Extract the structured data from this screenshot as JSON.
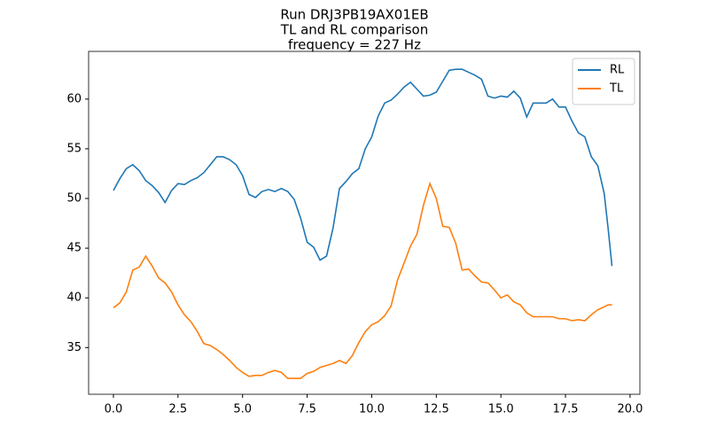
{
  "chart_data": {
    "type": "line",
    "title": [
      "Run DRJ3PB19AX01EB",
      "TL and RL comparison",
      "frequency = 227 Hz"
    ],
    "x": [
      0,
      0.25,
      0.5,
      0.75,
      1,
      1.25,
      1.5,
      1.75,
      2,
      2.25,
      2.5,
      2.75,
      3,
      3.25,
      3.5,
      3.75,
      4,
      4.25,
      4.5,
      4.75,
      5,
      5.25,
      5.5,
      5.75,
      6,
      6.25,
      6.5,
      6.75,
      7,
      7.25,
      7.5,
      7.75,
      8,
      8.25,
      8.5,
      8.75,
      9,
      9.25,
      9.5,
      9.75,
      10,
      10.25,
      10.5,
      10.75,
      11,
      11.25,
      11.5,
      11.75,
      12,
      12.25,
      12.5,
      12.75,
      13,
      13.25,
      13.5,
      13.75,
      14,
      14.25,
      14.5,
      14.75,
      15,
      15.25,
      15.5,
      15.75,
      16,
      16.25,
      16.5,
      16.75,
      17,
      17.25,
      17.5,
      17.75,
      18,
      18.25,
      18.5,
      18.75,
      19,
      19.15,
      19.3
    ],
    "series": [
      {
        "name": "RL",
        "color": "#1f77b4",
        "values": [
          50.8,
          52,
          53,
          53.4,
          52.8,
          51.8,
          51.3,
          50.6,
          49.6,
          50.8,
          51.5,
          51.4,
          51.8,
          52.1,
          52.6,
          53.4,
          54.2,
          54.2,
          53.9,
          53.4,
          52.3,
          50.4,
          50.1,
          50.7,
          50.9,
          50.7,
          51.0,
          50.7,
          49.9,
          48.0,
          45.6,
          45.1,
          43.8,
          44.2,
          47.0,
          51.0,
          51.7,
          52.5,
          53.0,
          55.0,
          56.2,
          58.3,
          59.6,
          59.9,
          60.5,
          61.2,
          61.7,
          61.0,
          60.3,
          60.4,
          60.7,
          61.8,
          62.9,
          63.0,
          63.0,
          62.7,
          62.4,
          62.0,
          60.3,
          60.1,
          60.3,
          60.2,
          60.8,
          60.1,
          58.2,
          59.6,
          59.6,
          59.6,
          60.0,
          59.2,
          59.2,
          57.8,
          56.6,
          56.2,
          54.2,
          53.3,
          50.5,
          47.0,
          43.2
        ]
      },
      {
        "name": "TL",
        "color": "#ff7f0e",
        "values": [
          39.0,
          39.5,
          40.6,
          42.8,
          43.1,
          44.2,
          43.2,
          42.0,
          41.5,
          40.6,
          39.3,
          38.3,
          37.6,
          36.6,
          35.4,
          35.2,
          34.8,
          34.3,
          33.7,
          33.0,
          32.5,
          32.1,
          32.2,
          32.2,
          32.5,
          32.7,
          32.5,
          31.9,
          31.9,
          31.9,
          32.4,
          32.6,
          33.0,
          33.2,
          33.4,
          33.7,
          33.4,
          34.2,
          35.5,
          36.6,
          37.3,
          37.6,
          38.2,
          39.2,
          41.8,
          43.5,
          45.2,
          46.4,
          49.3,
          51.5,
          50.0,
          47.2,
          47.1,
          45.5,
          42.8,
          42.9,
          42.2,
          41.6,
          41.5,
          40.8,
          40.0,
          40.3,
          39.6,
          39.3,
          38.5,
          38.1,
          38.1,
          38.1,
          38.1,
          37.9,
          37.9,
          37.7,
          37.8,
          37.7,
          38.3,
          38.8,
          39.1,
          39.3,
          39.3
        ]
      }
    ],
    "xlim": [
      -0.96,
      20.38
    ],
    "ylim": [
      30.3,
      64.8
    ],
    "xticks": [
      {
        "value": 0,
        "label": "0.0"
      },
      {
        "value": 2.5,
        "label": "2.5"
      },
      {
        "value": 5,
        "label": "5.0"
      },
      {
        "value": 7.5,
        "label": "7.5"
      },
      {
        "value": 10,
        "label": "10.0"
      },
      {
        "value": 12.5,
        "label": "12.5"
      },
      {
        "value": 15,
        "label": "15.0"
      },
      {
        "value": 17.5,
        "label": "17.5"
      },
      {
        "value": 20,
        "label": "20.0"
      }
    ],
    "yticks": [
      35,
      40,
      45,
      50,
      55,
      60
    ],
    "legend": "upper right"
  }
}
